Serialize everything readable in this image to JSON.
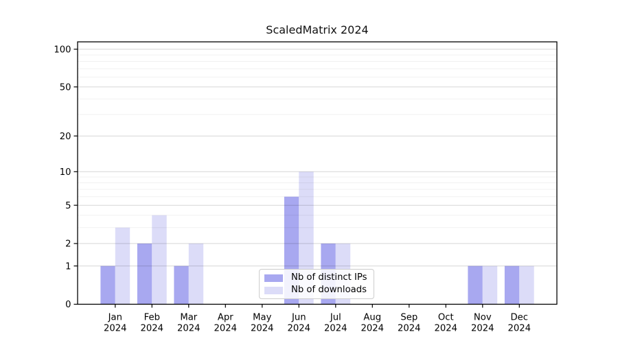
{
  "chart_data": {
    "type": "bar",
    "title": "ScaledMatrix 2024",
    "categories": [
      "Jan",
      "Feb",
      "Mar",
      "Apr",
      "May",
      "Jun",
      "Jul",
      "Aug",
      "Sep",
      "Oct",
      "Nov",
      "Dec"
    ],
    "x_axis": {
      "year_label": "2024"
    },
    "series": [
      {
        "name": "Nb of distinct IPs",
        "color": "#a8a8f0",
        "values": [
          1,
          2,
          1,
          0,
          0,
          6,
          2,
          0,
          0,
          0,
          1,
          1
        ]
      },
      {
        "name": "Nb of downloads",
        "color": "#dcdcf8",
        "values": [
          3,
          4,
          2,
          0,
          0,
          10,
          2,
          0,
          0,
          0,
          1,
          1
        ]
      }
    ],
    "y_axis": {
      "scale": "log1p",
      "tick_values": [
        0,
        1,
        2,
        5,
        10,
        20,
        50,
        100
      ],
      "minor_gridline_values": [
        3,
        4,
        6,
        7,
        8,
        9,
        30,
        40,
        60,
        70,
        80,
        90
      ],
      "range": [
        0,
        114
      ]
    },
    "legend": {
      "position": "lower center"
    },
    "grid": true,
    "colors": {
      "axis": "#000000",
      "major_grid_apparent": "#d6d6d6",
      "minor_grid_apparent": "#efefef",
      "background": "#ffffff"
    }
  }
}
